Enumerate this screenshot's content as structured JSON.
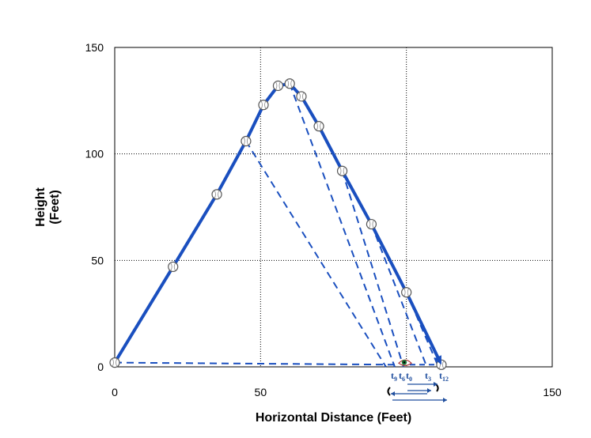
{
  "chart_data": {
    "type": "line",
    "xlabel": "Horizontal Distance (Feet)",
    "ylabel_lines": [
      "Height",
      "(Feet)"
    ],
    "xlim": [
      0,
      150
    ],
    "ylim": [
      0,
      150
    ],
    "x_ticks": [
      0,
      50,
      150
    ],
    "y_ticks": [
      0,
      50,
      100,
      150
    ],
    "grid": true,
    "series": [
      {
        "values_desc": "ball trajectory",
        "points": [
          [
            0,
            2
          ],
          [
            20,
            47
          ],
          [
            35,
            81
          ],
          [
            45,
            106
          ],
          [
            51,
            123
          ],
          [
            56,
            132
          ],
          [
            60,
            133
          ],
          [
            64,
            127
          ],
          [
            70,
            113
          ],
          [
            78,
            92
          ],
          [
            88,
            67
          ],
          [
            100,
            35
          ],
          [
            112,
            1
          ]
        ]
      }
    ],
    "ball_positions": [
      [
        0,
        2
      ],
      [
        20,
        47
      ],
      [
        35,
        81
      ],
      [
        45,
        106
      ],
      [
        51,
        123
      ],
      [
        56,
        132
      ],
      [
        60,
        133
      ],
      [
        64,
        127
      ],
      [
        70,
        113
      ],
      [
        78,
        92
      ],
      [
        88,
        67
      ],
      [
        100,
        35
      ],
      [
        112,
        1
      ]
    ],
    "sightlines_from": [
      [
        45,
        106
      ],
      [
        60,
        133
      ],
      [
        78,
        92
      ],
      [
        88,
        67
      ],
      [
        100,
        35
      ]
    ],
    "observer": [
      99,
      1
    ],
    "time_labels": [
      {
        "main": "t",
        "sub": "9",
        "x": 95
      },
      {
        "main": "t",
        "sub": "6",
        "x": 98
      },
      {
        "main": "t",
        "sub": "0",
        "x": 101
      },
      {
        "main": "t",
        "sub": "3",
        "x": 108
      },
      {
        "main": "t",
        "sub": "12",
        "x": 114
      }
    ],
    "colors": {
      "trajectory": "#1a4fbf",
      "dashed": "#1a4fbf",
      "labels": "#1f4e9e",
      "grid": "#000000"
    }
  }
}
